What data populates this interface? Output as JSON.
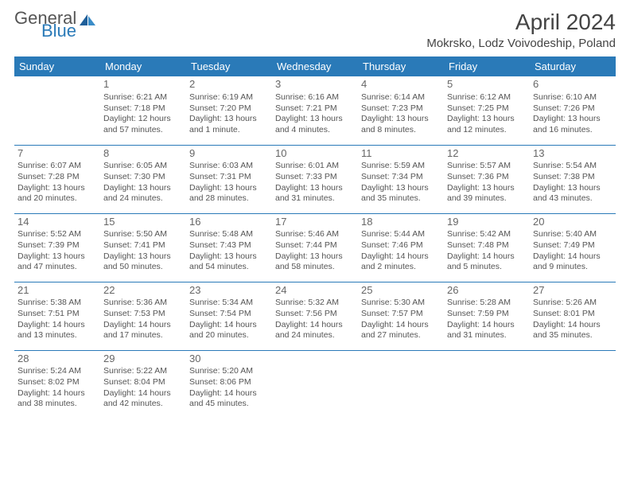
{
  "logo": {
    "general": "General",
    "blue": "Blue"
  },
  "title": "April 2024",
  "location": "Mokrsko, Lodz Voivodeship, Poland",
  "colors": {
    "header_bg": "#2a7ab8",
    "header_fg": "#ffffff",
    "text": "#555555",
    "rule": "#2a7ab8"
  },
  "day_headers": [
    "Sunday",
    "Monday",
    "Tuesday",
    "Wednesday",
    "Thursday",
    "Friday",
    "Saturday"
  ],
  "weeks": [
    [
      null,
      {
        "n": "1",
        "sr": "Sunrise: 6:21 AM",
        "ss": "Sunset: 7:18 PM",
        "dl": "Daylight: 12 hours and 57 minutes."
      },
      {
        "n": "2",
        "sr": "Sunrise: 6:19 AM",
        "ss": "Sunset: 7:20 PM",
        "dl": "Daylight: 13 hours and 1 minute."
      },
      {
        "n": "3",
        "sr": "Sunrise: 6:16 AM",
        "ss": "Sunset: 7:21 PM",
        "dl": "Daylight: 13 hours and 4 minutes."
      },
      {
        "n": "4",
        "sr": "Sunrise: 6:14 AM",
        "ss": "Sunset: 7:23 PM",
        "dl": "Daylight: 13 hours and 8 minutes."
      },
      {
        "n": "5",
        "sr": "Sunrise: 6:12 AM",
        "ss": "Sunset: 7:25 PM",
        "dl": "Daylight: 13 hours and 12 minutes."
      },
      {
        "n": "6",
        "sr": "Sunrise: 6:10 AM",
        "ss": "Sunset: 7:26 PM",
        "dl": "Daylight: 13 hours and 16 minutes."
      }
    ],
    [
      {
        "n": "7",
        "sr": "Sunrise: 6:07 AM",
        "ss": "Sunset: 7:28 PM",
        "dl": "Daylight: 13 hours and 20 minutes."
      },
      {
        "n": "8",
        "sr": "Sunrise: 6:05 AM",
        "ss": "Sunset: 7:30 PM",
        "dl": "Daylight: 13 hours and 24 minutes."
      },
      {
        "n": "9",
        "sr": "Sunrise: 6:03 AM",
        "ss": "Sunset: 7:31 PM",
        "dl": "Daylight: 13 hours and 28 minutes."
      },
      {
        "n": "10",
        "sr": "Sunrise: 6:01 AM",
        "ss": "Sunset: 7:33 PM",
        "dl": "Daylight: 13 hours and 31 minutes."
      },
      {
        "n": "11",
        "sr": "Sunrise: 5:59 AM",
        "ss": "Sunset: 7:34 PM",
        "dl": "Daylight: 13 hours and 35 minutes."
      },
      {
        "n": "12",
        "sr": "Sunrise: 5:57 AM",
        "ss": "Sunset: 7:36 PM",
        "dl": "Daylight: 13 hours and 39 minutes."
      },
      {
        "n": "13",
        "sr": "Sunrise: 5:54 AM",
        "ss": "Sunset: 7:38 PM",
        "dl": "Daylight: 13 hours and 43 minutes."
      }
    ],
    [
      {
        "n": "14",
        "sr": "Sunrise: 5:52 AM",
        "ss": "Sunset: 7:39 PM",
        "dl": "Daylight: 13 hours and 47 minutes."
      },
      {
        "n": "15",
        "sr": "Sunrise: 5:50 AM",
        "ss": "Sunset: 7:41 PM",
        "dl": "Daylight: 13 hours and 50 minutes."
      },
      {
        "n": "16",
        "sr": "Sunrise: 5:48 AM",
        "ss": "Sunset: 7:43 PM",
        "dl": "Daylight: 13 hours and 54 minutes."
      },
      {
        "n": "17",
        "sr": "Sunrise: 5:46 AM",
        "ss": "Sunset: 7:44 PM",
        "dl": "Daylight: 13 hours and 58 minutes."
      },
      {
        "n": "18",
        "sr": "Sunrise: 5:44 AM",
        "ss": "Sunset: 7:46 PM",
        "dl": "Daylight: 14 hours and 2 minutes."
      },
      {
        "n": "19",
        "sr": "Sunrise: 5:42 AM",
        "ss": "Sunset: 7:48 PM",
        "dl": "Daylight: 14 hours and 5 minutes."
      },
      {
        "n": "20",
        "sr": "Sunrise: 5:40 AM",
        "ss": "Sunset: 7:49 PM",
        "dl": "Daylight: 14 hours and 9 minutes."
      }
    ],
    [
      {
        "n": "21",
        "sr": "Sunrise: 5:38 AM",
        "ss": "Sunset: 7:51 PM",
        "dl": "Daylight: 14 hours and 13 minutes."
      },
      {
        "n": "22",
        "sr": "Sunrise: 5:36 AM",
        "ss": "Sunset: 7:53 PM",
        "dl": "Daylight: 14 hours and 17 minutes."
      },
      {
        "n": "23",
        "sr": "Sunrise: 5:34 AM",
        "ss": "Sunset: 7:54 PM",
        "dl": "Daylight: 14 hours and 20 minutes."
      },
      {
        "n": "24",
        "sr": "Sunrise: 5:32 AM",
        "ss": "Sunset: 7:56 PM",
        "dl": "Daylight: 14 hours and 24 minutes."
      },
      {
        "n": "25",
        "sr": "Sunrise: 5:30 AM",
        "ss": "Sunset: 7:57 PM",
        "dl": "Daylight: 14 hours and 27 minutes."
      },
      {
        "n": "26",
        "sr": "Sunrise: 5:28 AM",
        "ss": "Sunset: 7:59 PM",
        "dl": "Daylight: 14 hours and 31 minutes."
      },
      {
        "n": "27",
        "sr": "Sunrise: 5:26 AM",
        "ss": "Sunset: 8:01 PM",
        "dl": "Daylight: 14 hours and 35 minutes."
      }
    ],
    [
      {
        "n": "28",
        "sr": "Sunrise: 5:24 AM",
        "ss": "Sunset: 8:02 PM",
        "dl": "Daylight: 14 hours and 38 minutes."
      },
      {
        "n": "29",
        "sr": "Sunrise: 5:22 AM",
        "ss": "Sunset: 8:04 PM",
        "dl": "Daylight: 14 hours and 42 minutes."
      },
      {
        "n": "30",
        "sr": "Sunrise: 5:20 AM",
        "ss": "Sunset: 8:06 PM",
        "dl": "Daylight: 14 hours and 45 minutes."
      },
      null,
      null,
      null,
      null
    ]
  ]
}
